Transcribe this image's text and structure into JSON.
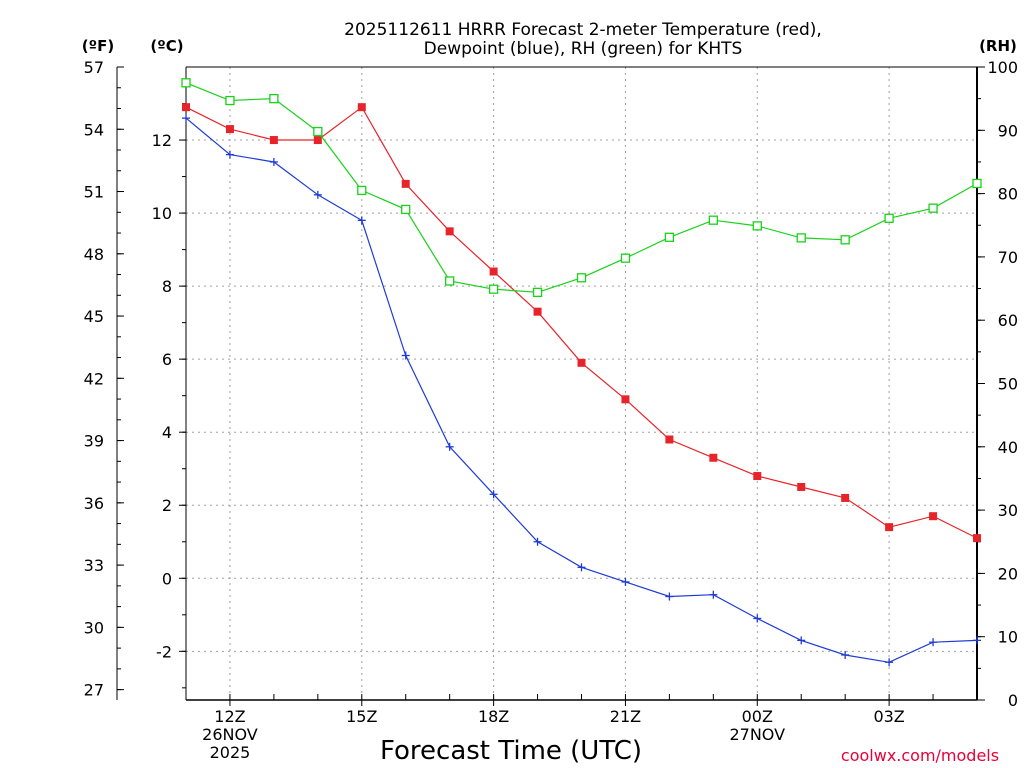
{
  "chart_data": {
    "type": "line",
    "title_line1": "2025112611 HRRR Forecast 2-meter Temperature (red),",
    "title_line2": "Dewpoint (blue), RH (green) for KHTS",
    "xlabel": "Forecast Time (UTC)",
    "credit": "coolwx.com/models",
    "unit_f": "(ºF)",
    "unit_c": "(ºC)",
    "unit_rh": "(RH)",
    "x_hours": [
      11,
      12,
      13,
      14,
      15,
      16,
      17,
      18,
      19,
      20,
      21,
      22,
      23,
      24,
      25,
      26,
      27,
      28,
      29
    ],
    "xlim": [
      11,
      29
    ],
    "ylim_c": [
      -3.333,
      14.0
    ],
    "ylim_rh": [
      0,
      100
    ],
    "ylim_f": [
      26.5,
      57.0
    ],
    "x_ticks": [
      {
        "h": 12,
        "l1": "12Z",
        "l2": "26NOV",
        "l3": "2025"
      },
      {
        "h": 15,
        "l1": "15Z",
        "l2": "",
        "l3": ""
      },
      {
        "h": 18,
        "l1": "18Z",
        "l2": "",
        "l3": ""
      },
      {
        "h": 21,
        "l1": "21Z",
        "l2": "",
        "l3": ""
      },
      {
        "h": 24,
        "l1": "00Z",
        "l2": "27NOV",
        "l3": ""
      },
      {
        "h": 27,
        "l1": "03Z",
        "l2": "",
        "l3": ""
      }
    ],
    "c_ticks": [
      "-2",
      "0",
      "2",
      "4",
      "6",
      "8",
      "10",
      "12"
    ],
    "f_ticks": [
      "27",
      "30",
      "33",
      "36",
      "39",
      "42",
      "45",
      "48",
      "51",
      "54",
      "57"
    ],
    "rh_ticks": [
      "0",
      "10",
      "20",
      "30",
      "40",
      "50",
      "60",
      "70",
      "80",
      "90",
      "100"
    ],
    "colors": {
      "temperature": "#e8242b",
      "dewpoint": "#1f3bd6",
      "rh": "#19d219",
      "grid": "#a0a0a0"
    },
    "series": [
      {
        "name": "Temperature",
        "unit": "C",
        "marker": "filled-square",
        "values": [
          12.9,
          12.3,
          12.0,
          12.0,
          12.9,
          10.8,
          9.5,
          8.4,
          7.3,
          5.9,
          4.9,
          3.8,
          3.3,
          2.8,
          2.5,
          2.2,
          1.4,
          1.7,
          1.1
        ]
      },
      {
        "name": "Dewpoint",
        "unit": "C",
        "marker": "plus",
        "values": [
          12.6,
          11.6,
          11.4,
          10.5,
          9.8,
          6.1,
          3.6,
          2.3,
          1.0,
          0.3,
          -0.1,
          -0.5,
          -0.45,
          -1.1,
          -1.7,
          -2.1,
          -2.3,
          -1.75,
          -1.7
        ]
      },
      {
        "name": "RH",
        "unit": "%",
        "marker": "open-square",
        "values": [
          97.5,
          94.7,
          95.0,
          89.8,
          80.5,
          77.5,
          66.2,
          64.9,
          64.4,
          66.7,
          69.8,
          73.1,
          75.8,
          74.9,
          73.0,
          72.7,
          76.1,
          77.7,
          81.6
        ]
      }
    ]
  }
}
